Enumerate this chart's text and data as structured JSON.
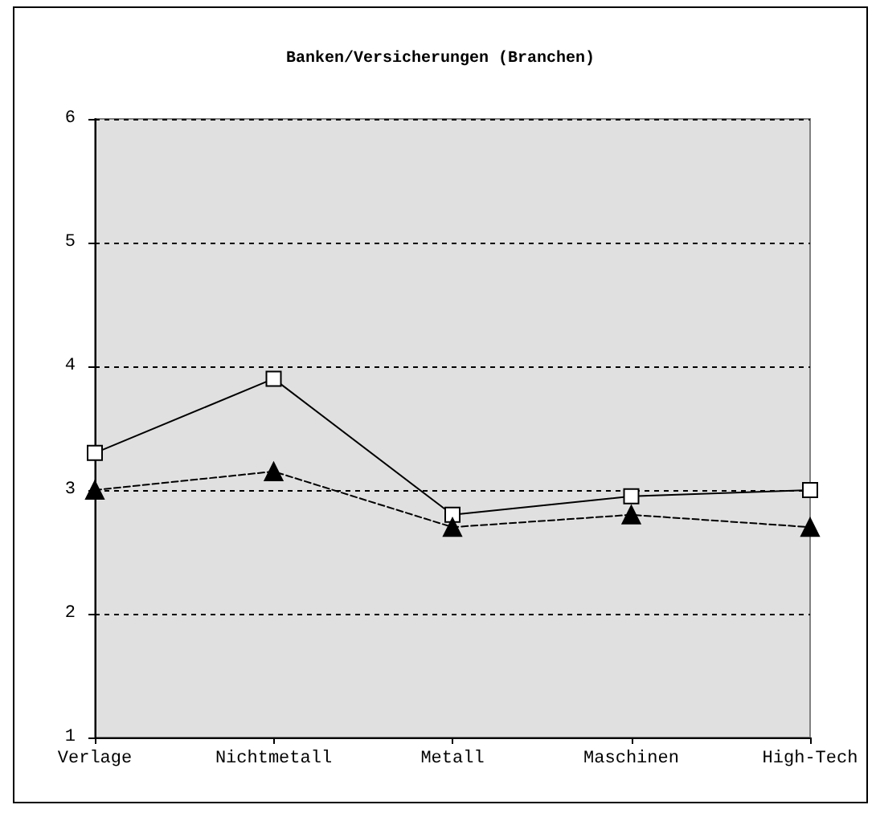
{
  "chart_data": {
    "type": "line",
    "title": "Banken/Versicherungen (Branchen)",
    "categories": [
      "Verlage",
      "Nichtmetall",
      "Metall",
      "Maschinen",
      "High-Tech"
    ],
    "series": [
      {
        "color": "#000000",
        "marker": "square",
        "line_style": "solid",
        "values": [
          3.3,
          3.9,
          2.8,
          2.95,
          3.0
        ]
      },
      {
        "color": "#000000",
        "marker": "triangle",
        "line_style": "dashed",
        "values": [
          3.0,
          3.15,
          2.7,
          2.8,
          2.7
        ]
      }
    ],
    "ylim": [
      1,
      6
    ],
    "yticks": [
      1,
      2,
      3,
      4,
      5,
      6
    ],
    "grid": "y"
  }
}
